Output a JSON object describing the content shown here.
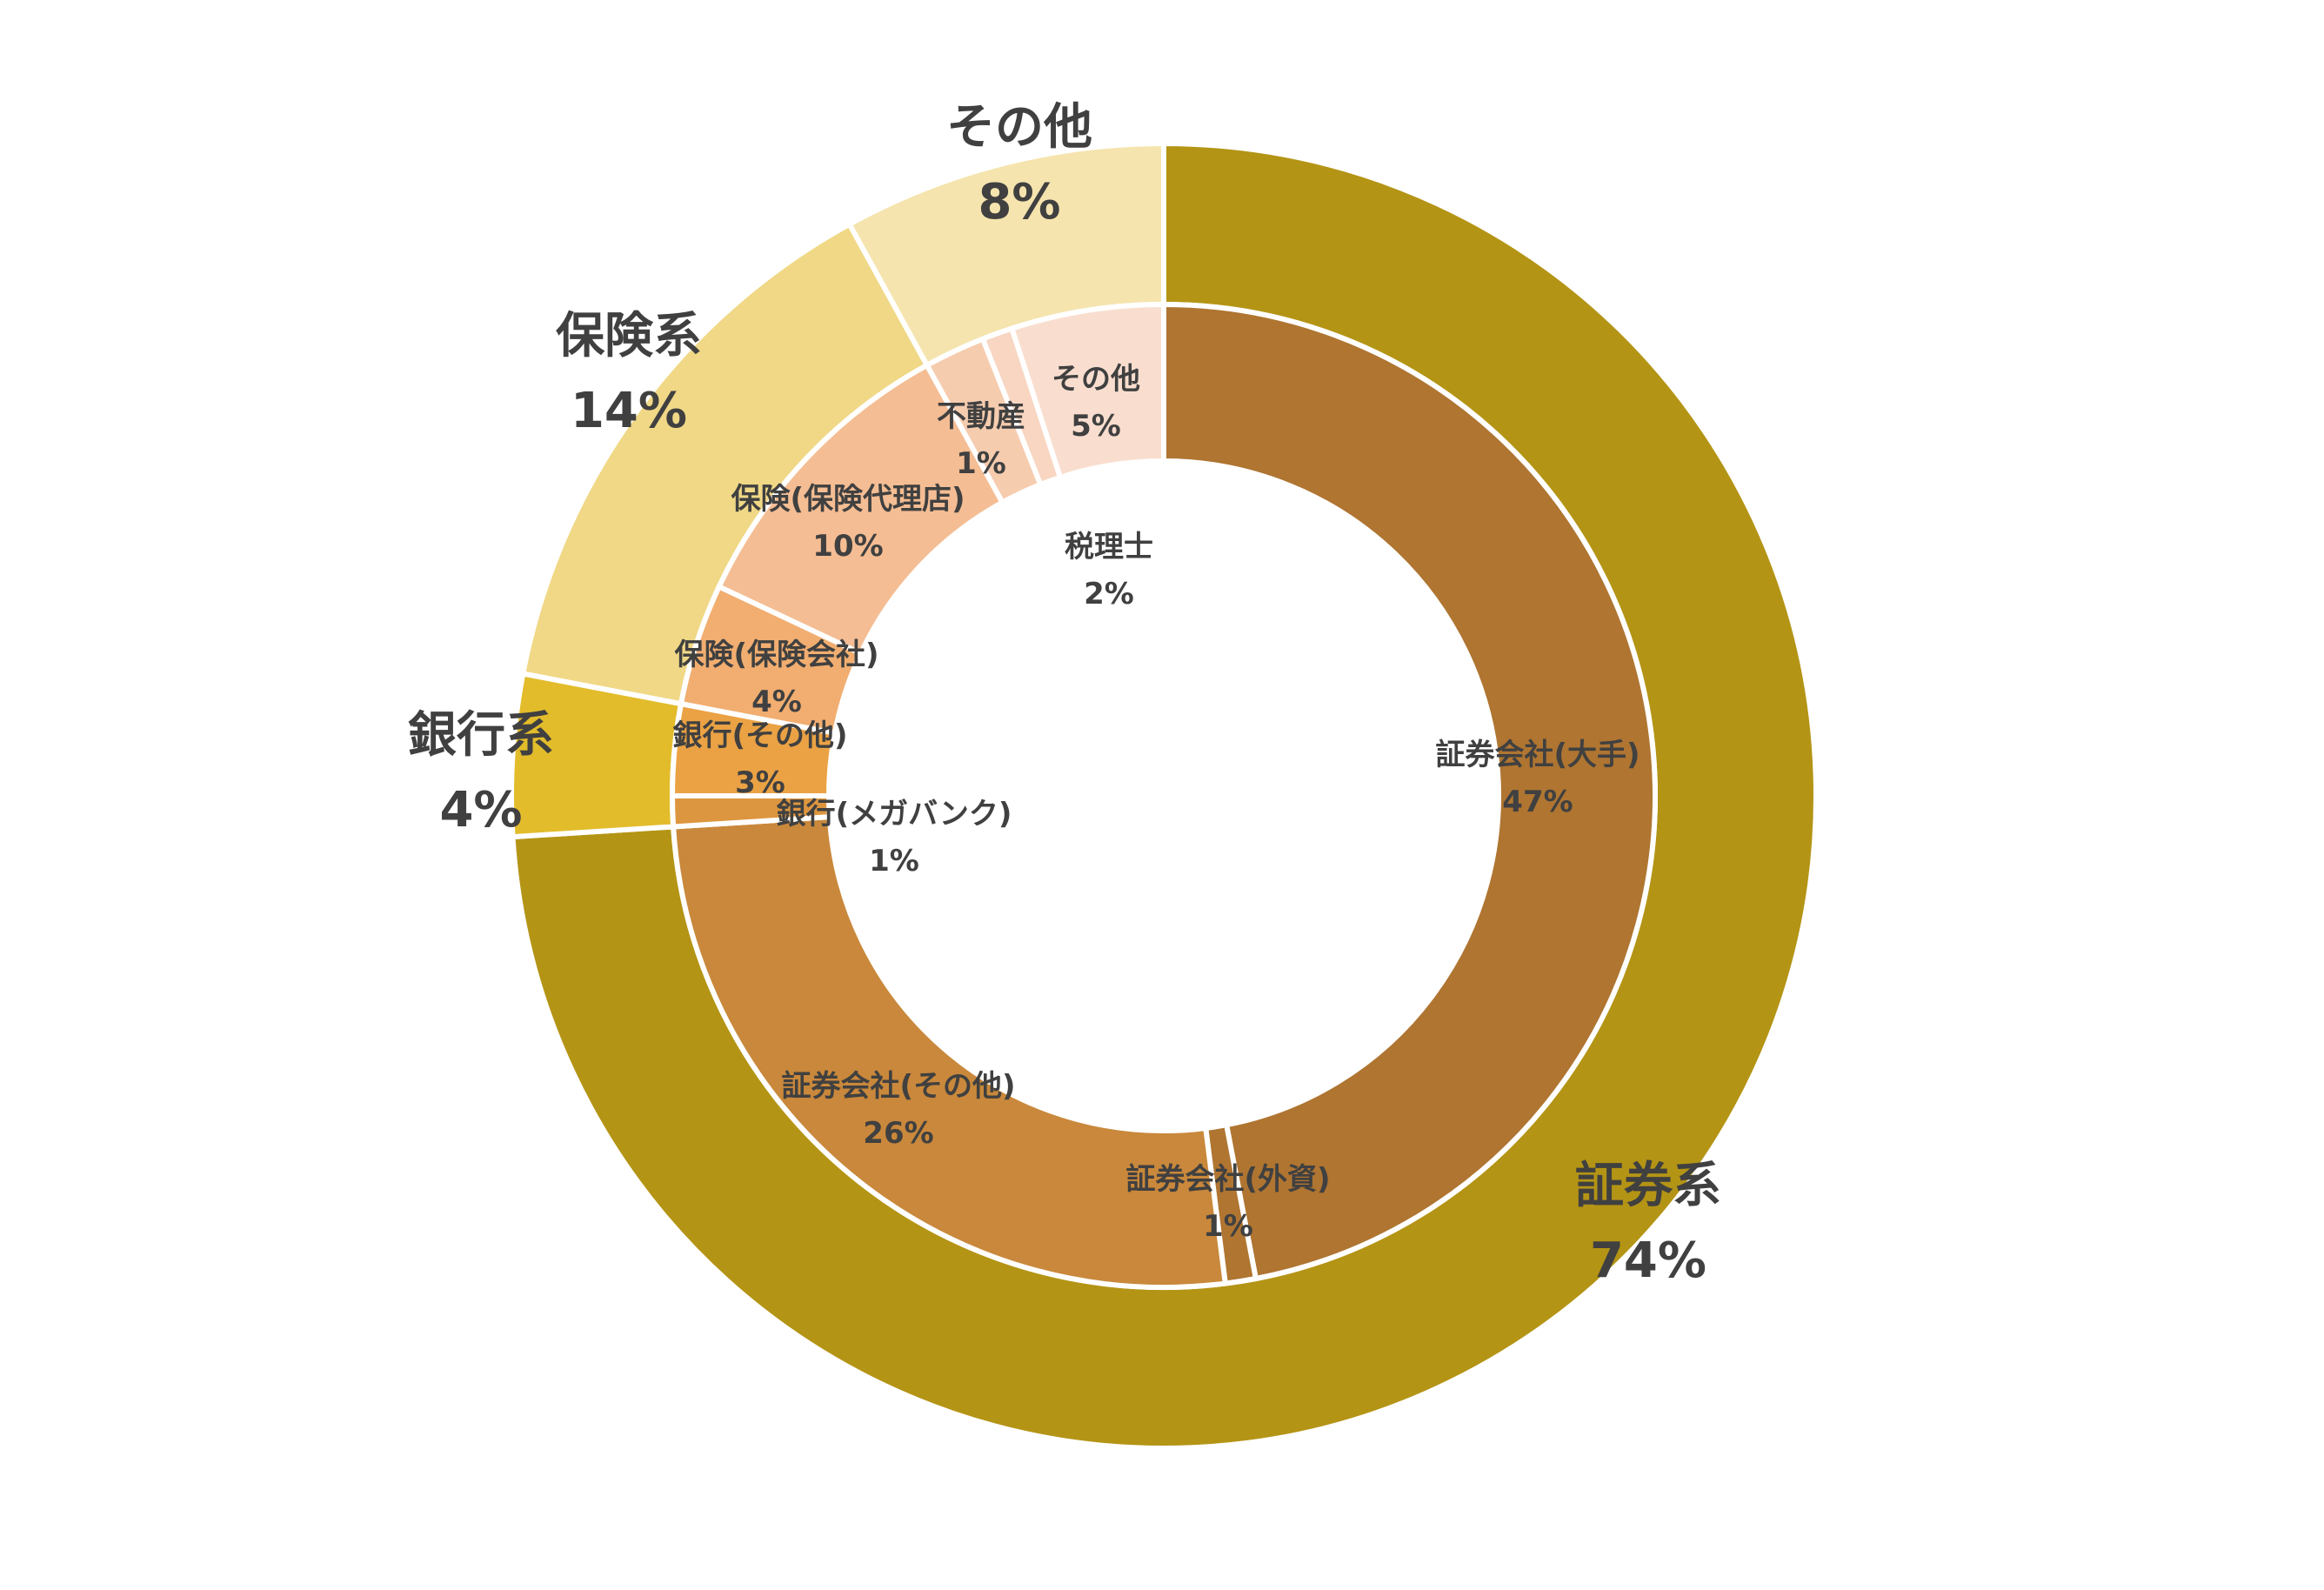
{
  "chart_data": {
    "type": "donut",
    "title": "",
    "rings": [
      {
        "ring": "outer",
        "series": [
          {
            "name": "証券系",
            "value": 74,
            "label": "74%",
            "color": "#B49415"
          },
          {
            "name": "銀行系",
            "value": 4,
            "label": "4%",
            "color": "#E3BC2B"
          },
          {
            "name": "保険系",
            "value": 14,
            "label": "14%",
            "color": "#F0D886"
          },
          {
            "name": "その他",
            "value": 8,
            "label": "8%",
            "color": "#F5E4AE"
          }
        ]
      },
      {
        "ring": "inner",
        "series": [
          {
            "name": "証券会社(大手)",
            "value": 47,
            "label": "47%",
            "color": "#AF7531"
          },
          {
            "name": "証券会社(外資)",
            "value": 1,
            "label": "1%",
            "color": "#AF7531"
          },
          {
            "name": "証券会社(その他)",
            "value": 26,
            "label": "26%",
            "color": "#C9883B"
          },
          {
            "name": "銀行(メガバンク)",
            "value": 1,
            "label": "1%",
            "color": "#DD9640"
          },
          {
            "name": "銀行(その他)",
            "value": 3,
            "label": "3%",
            "color": "#EBA244"
          },
          {
            "name": "保険(保険会社)",
            "value": 4,
            "label": "4%",
            "color": "#F1AE70"
          },
          {
            "name": "保険(保険代理店)",
            "value": 10,
            "label": "10%",
            "color": "#F4BD93"
          },
          {
            "name": "税理士",
            "value": 2,
            "label": "2%",
            "color": "#F6CCAF"
          },
          {
            "name": "不動産",
            "value": 1,
            "label": "1%",
            "color": "#F8D6C2"
          },
          {
            "name": "その他",
            "value": 5,
            "label": "5%",
            "color": "#F9DECF"
          }
        ]
      }
    ],
    "legend": "none"
  }
}
